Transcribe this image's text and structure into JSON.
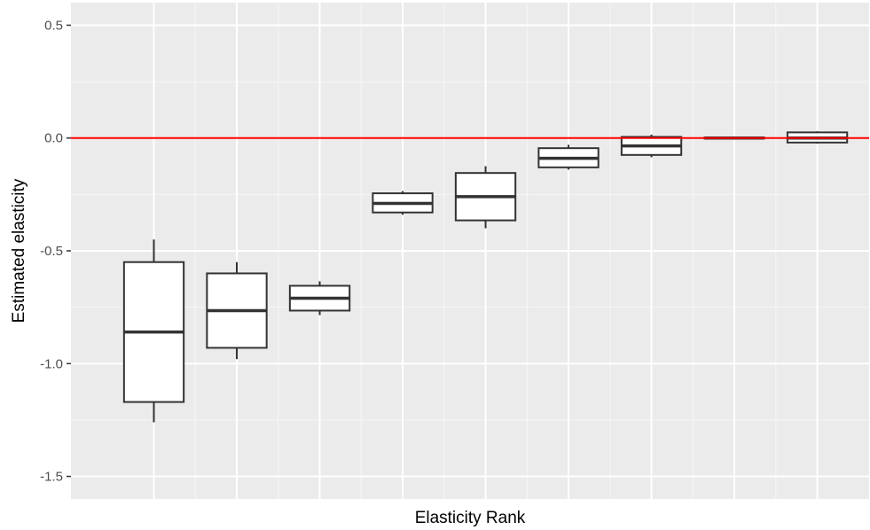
{
  "chart_data": {
    "type": "boxplot",
    "title": "",
    "xlabel": "Elasticity Rank",
    "ylabel": "Estimated elasticity",
    "ylim": [
      -1.6,
      0.6
    ],
    "y_ticks": [
      -1.5,
      -1.0,
      -0.5,
      0.0,
      0.5
    ],
    "y_tick_labels": [
      "-1.5",
      "-1.0",
      "-0.5",
      "0.0",
      "0.5"
    ],
    "x_ticks_shown": false,
    "grid": true,
    "panel_background": "#ebebeb",
    "grid_color": "#ffffff",
    "box_fill": "#ffffff",
    "box_stroke": "#333333",
    "reference_line": {
      "y": 0.0,
      "color": "#ff0000"
    },
    "boxes": [
      {
        "x": 1,
        "min": -1.26,
        "q1": -1.17,
        "median": -0.86,
        "q3": -0.55,
        "max": -0.45
      },
      {
        "x": 2,
        "min": -0.98,
        "q1": -0.93,
        "median": -0.765,
        "q3": -0.6,
        "max": -0.55
      },
      {
        "x": 3,
        "min": -0.785,
        "q1": -0.765,
        "median": -0.71,
        "q3": -0.655,
        "max": -0.635
      },
      {
        "x": 4,
        "min": -0.34,
        "q1": -0.33,
        "median": -0.29,
        "q3": -0.245,
        "max": -0.235
      },
      {
        "x": 5,
        "min": -0.4,
        "q1": -0.365,
        "median": -0.26,
        "q3": -0.155,
        "max": -0.125
      },
      {
        "x": 6,
        "min": -0.14,
        "q1": -0.13,
        "median": -0.09,
        "q3": -0.045,
        "max": -0.03
      },
      {
        "x": 7,
        "min": -0.085,
        "q1": -0.075,
        "median": -0.035,
        "q3": 0.005,
        "max": 0.015
      },
      {
        "x": 8,
        "min": -0.004,
        "q1": -0.002,
        "median": 0.0,
        "q3": 0.002,
        "max": 0.004
      },
      {
        "x": 9,
        "min": -0.025,
        "q1": -0.02,
        "median": 0.0,
        "q3": 0.025,
        "max": 0.03
      }
    ]
  }
}
